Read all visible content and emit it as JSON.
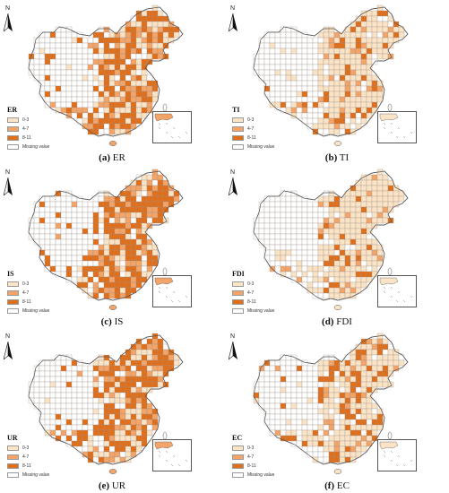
{
  "panels": [
    {
      "title": "ER",
      "caption_letter": "(a)",
      "caption_text": "ER",
      "intensity": 0.72,
      "seed": 11
    },
    {
      "title": "TI",
      "caption_letter": "(b)",
      "caption_text": "TI",
      "intensity": 0.28,
      "seed": 23
    },
    {
      "title": "IS",
      "caption_letter": "(c)",
      "caption_text": "IS",
      "intensity": 0.82,
      "seed": 37
    },
    {
      "title": "FDI",
      "caption_letter": "(d)",
      "caption_text": "FDI",
      "intensity": 0.22,
      "seed": 41
    },
    {
      "title": "UR",
      "caption_letter": "(e)",
      "caption_text": "UR",
      "intensity": 0.76,
      "seed": 53
    },
    {
      "title": "EC",
      "caption_letter": "(f)",
      "caption_text": "EC",
      "intensity": 0.4,
      "seed": 67
    }
  ],
  "legend": {
    "classes": [
      {
        "label": "0-3",
        "color": "#fbe3c6"
      },
      {
        "label": "4-7",
        "color": "#f3a468"
      },
      {
        "label": "8-11",
        "color": "#e06f1c"
      }
    ],
    "missing_label": "Missing value",
    "missing_color": "#ffffff"
  },
  "north_label": "N"
}
